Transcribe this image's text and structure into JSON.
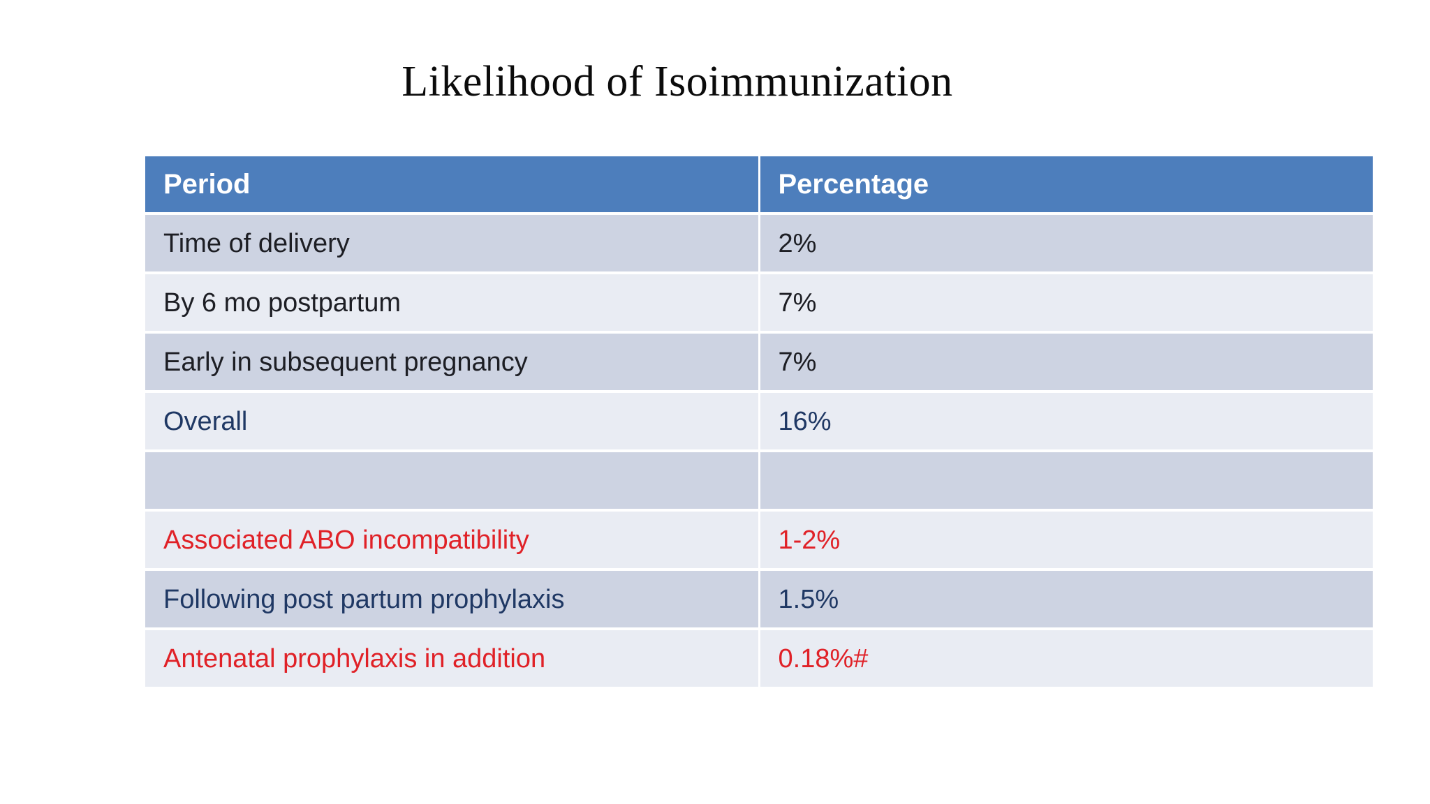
{
  "slide": {
    "title": "Likelihood of Isoimmunization"
  },
  "table": {
    "headers": {
      "period": "Period",
      "percentage": "Percentage"
    },
    "rows": [
      {
        "period": "Time of delivery",
        "percentage": "2%",
        "emphasis": "default"
      },
      {
        "period": "By 6 mo postpartum",
        "percentage": "7%",
        "emphasis": "default"
      },
      {
        "period": "Early in subsequent pregnancy",
        "percentage": "7%",
        "emphasis": "default"
      },
      {
        "period": "Overall",
        "percentage": "16%",
        "emphasis": "navy"
      },
      {
        "period": "",
        "percentage": "",
        "emphasis": "empty"
      },
      {
        "period": "Associated ABO incompatibility",
        "percentage": "1-2%",
        "emphasis": "red"
      },
      {
        "period": "Following post partum prophylaxis",
        "percentage": "1.5%",
        "emphasis": "navy"
      },
      {
        "period": "Antenatal prophylaxis in addition",
        "percentage": "0.18%#",
        "emphasis": "red"
      }
    ]
  },
  "colors": {
    "slide_bg": "#ffffff",
    "title_text": "#0b0b0b",
    "header_bg": "#4d7ebc",
    "header_text": "#ffffff",
    "row_dark": "#cdd3e2",
    "row_light": "#e9ecf3",
    "text_dark": "#1d1e24",
    "navy": "#1f3864",
    "red": "#e02127"
  }
}
